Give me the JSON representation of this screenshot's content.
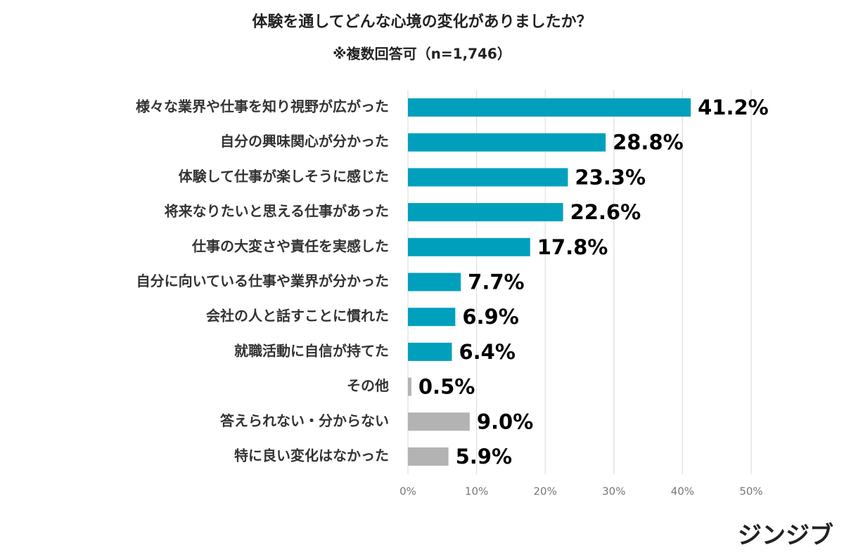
{
  "chart_data": {
    "type": "hbar",
    "title": "体験を通してどんな心境の変化がありましたか？",
    "subtitle": "※複数回答可（n=1,746）",
    "categories": [
      "様々な業界や仕事を知り視野が広がった",
      "自分の興味関心が分かった",
      "体験して仕事が楽しそうに感じた",
      "将来なりたいと思える仕事があった",
      "仕事の大変さや責任を実感した",
      "自分に向いている仕事や業界が分かった",
      "会社の人と話すことに慣れた",
      "就職活動に自信が持てた",
      "その他",
      "答えられない・分からない",
      "特に良い変化はなかった"
    ],
    "values": [
      41.2,
      28.8,
      23.3,
      22.6,
      17.8,
      7.7,
      6.9,
      6.4,
      0.5,
      9.0,
      5.9
    ],
    "value_labels": [
      "41.2%",
      "28.8%",
      "23.3%",
      "22.6%",
      "17.8%",
      "7.7%",
      "6.9%",
      "6.4%",
      "0.5%",
      "9.0%",
      "5.9%"
    ],
    "colors": [
      "#00a0bd",
      "#00a0bd",
      "#00a0bd",
      "#00a0bd",
      "#00a0bd",
      "#00a0bd",
      "#00a0bd",
      "#00a0bd",
      "#b3b3b3",
      "#b3b3b3",
      "#b3b3b3"
    ],
    "xlim": [
      0,
      50
    ],
    "xticks": [
      {
        "value": 0,
        "label": "0%"
      },
      {
        "value": 10,
        "label": "10%"
      },
      {
        "value": 20,
        "label": "20%"
      },
      {
        "value": 30,
        "label": "30%"
      },
      {
        "value": 40,
        "label": "40%"
      },
      {
        "value": 50,
        "label": "50%"
      }
    ],
    "grid": true,
    "logo": "ジンジブ"
  }
}
